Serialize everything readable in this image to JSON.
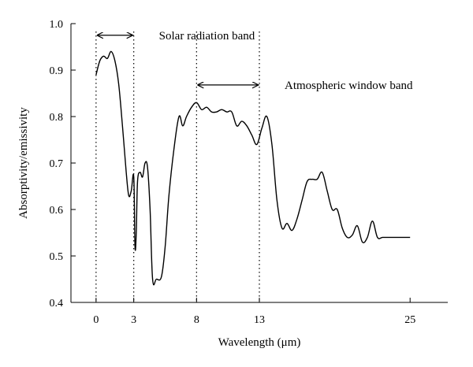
{
  "chart_data": {
    "type": "line",
    "xlabel": "Wavelength (μm)",
    "ylabel": "Absorptivity/emissivity",
    "xlim": [
      -2,
      28
    ],
    "ylim": [
      0.4,
      1.0
    ],
    "x_ticks": [
      "0",
      "3",
      "8",
      "13",
      "25"
    ],
    "y_ticks": [
      "0.4",
      "0.5",
      "0.6",
      "0.7",
      "0.8",
      "0.9",
      "1.0"
    ],
    "grid": false,
    "series": [
      {
        "x": [
          0.0,
          0.3,
          0.6,
          0.9,
          1.2,
          1.5,
          1.8,
          2.1,
          2.4,
          2.6,
          2.8,
          3.0,
          3.1,
          3.2,
          3.3,
          3.5,
          3.7,
          3.9,
          4.1,
          4.3,
          4.5,
          4.8,
          5.2,
          5.5,
          5.8,
          6.2,
          6.6,
          6.9,
          7.2,
          7.6,
          8.0,
          8.4,
          8.8,
          9.2,
          9.6,
          10.0,
          10.4,
          10.8,
          11.2,
          11.6,
          12.0,
          12.4,
          12.8,
          13.2,
          13.6,
          14.0,
          14.4,
          14.8,
          15.2,
          15.6,
          16.0,
          16.4,
          16.8,
          17.2,
          17.6,
          18.0,
          18.4,
          18.8,
          19.2,
          19.6,
          20.0,
          20.4,
          20.8,
          21.2,
          21.6,
          22.0,
          22.4,
          22.8,
          23.2,
          23.6,
          24.0,
          24.4,
          24.8,
          25.0
        ],
        "values": [
          0.89,
          0.92,
          0.93,
          0.925,
          0.94,
          0.92,
          0.87,
          0.78,
          0.68,
          0.63,
          0.64,
          0.67,
          0.52,
          0.55,
          0.66,
          0.68,
          0.67,
          0.7,
          0.69,
          0.6,
          0.45,
          0.45,
          0.455,
          0.52,
          0.63,
          0.73,
          0.8,
          0.78,
          0.8,
          0.82,
          0.83,
          0.815,
          0.82,
          0.81,
          0.81,
          0.815,
          0.81,
          0.81,
          0.78,
          0.79,
          0.78,
          0.76,
          0.74,
          0.775,
          0.8,
          0.74,
          0.62,
          0.56,
          0.57,
          0.555,
          0.58,
          0.62,
          0.66,
          0.665,
          0.665,
          0.68,
          0.64,
          0.6,
          0.6,
          0.56,
          0.54,
          0.545,
          0.565,
          0.53,
          0.54,
          0.575,
          0.54,
          0.54,
          0.54,
          0.54,
          0.54,
          0.54,
          0.54,
          0.54
        ]
      }
    ],
    "reference_lines_x": [
      0,
      3,
      8,
      13
    ],
    "annotations": [
      {
        "text": "Solar radiation band",
        "x_from": 0,
        "x_to": 3,
        "y": 0.975
      },
      {
        "text": "Atmospheric window band",
        "x_from": 8,
        "x_to": 13,
        "y": 0.868
      }
    ]
  }
}
